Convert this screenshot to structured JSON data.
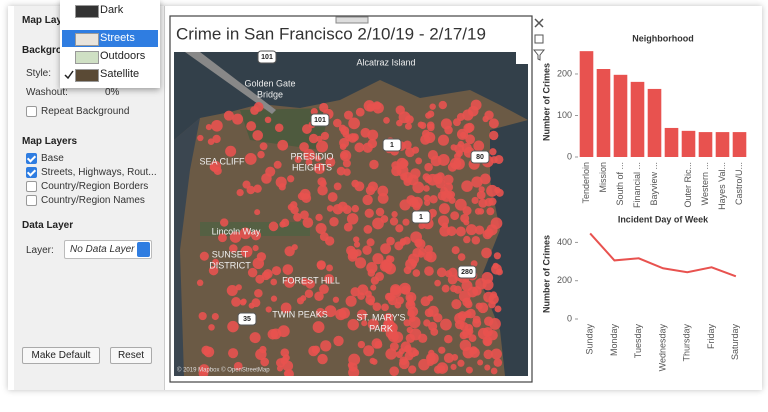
{
  "sidebar": {
    "heading": "Map Layers",
    "background_heading": "Background",
    "style_label": "Style:",
    "washout_label": "Washout:",
    "washout_value": "0%",
    "repeat_background": "Repeat Background",
    "layers_heading": "Map Layers",
    "layers": [
      {
        "name": "Base",
        "checked": true
      },
      {
        "name": "Streets, Highways, Rout...",
        "checked": true
      },
      {
        "name": "Country/Region Borders",
        "checked": false
      },
      {
        "name": "Country/Region Names",
        "checked": false
      }
    ],
    "data_layer_heading": "Data Layer",
    "layer_label": "Layer:",
    "layer_value": "No Data Layer",
    "buttons": [
      "Make Default",
      "Reset"
    ]
  },
  "style_menu": {
    "items": [
      "Dark",
      "Streets",
      "Outdoors",
      "Satellite"
    ],
    "highlighted_index": 1,
    "checked_index": 3
  },
  "map": {
    "title": "Crime in San Francisco 2/10/19 - 2/17/19",
    "labels": [
      "101",
      "Golden Gate",
      "Bridge",
      "Alcatraz Island",
      "101",
      "SEA CLIFF",
      "PRESIDIO",
      "HEIGHTS",
      "1",
      "80",
      "1",
      "Lincoln Way",
      "SUNSET",
      "DISTRICT",
      "FOREST HILL",
      "280",
      "TWIN PEAKS",
      "35",
      "ST. MARY'S",
      "PARK"
    ],
    "attribution": "© 2019 Mapbox © OpenStreetMap"
  },
  "chart_data": [
    {
      "type": "bar",
      "title": "Neighborhood",
      "y_label": "Number of Crimes",
      "categories": [
        "Tenderloin",
        "Mission",
        "South of ...",
        "Financial ...",
        "Bayview ...",
        null,
        "Outer Ric...",
        "Western ...",
        "Hayes Val...",
        "Castro/U..."
      ],
      "values": [
        255,
        212,
        198,
        181,
        164,
        70,
        63,
        60,
        60,
        60
      ],
      "color": "#e8524f",
      "ylim": [
        0,
        265
      ],
      "yticks": [
        0,
        100,
        200
      ]
    },
    {
      "type": "line",
      "title": "Incident Day of Week",
      "y_label": "Number of Crimes",
      "categories": [
        "Sunday",
        "Monday",
        "Tuesday",
        "Wednesday",
        "Thursday",
        "Friday",
        "Saturday"
      ],
      "values": [
        447,
        306,
        317,
        265,
        244,
        270,
        223
      ],
      "color": "#e8524f",
      "ylim": [
        0,
        470
      ],
      "yticks": [
        0,
        200,
        400
      ]
    }
  ]
}
